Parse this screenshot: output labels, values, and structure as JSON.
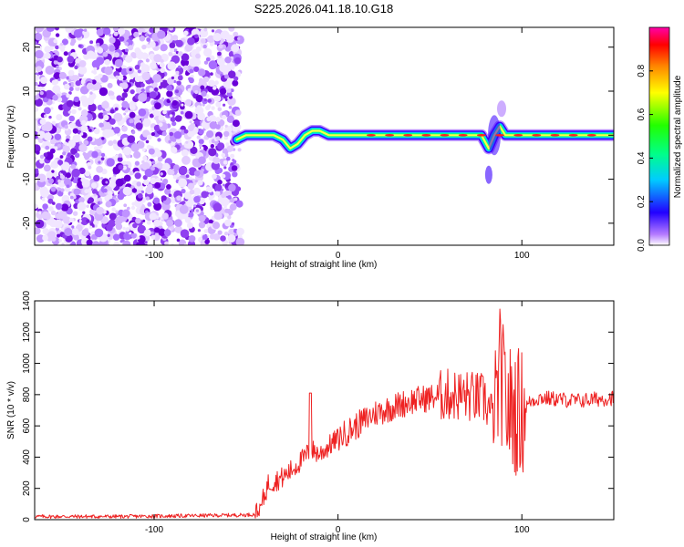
{
  "title": "S225.2026.041.18.10.G18",
  "chart_data": [
    {
      "type": "heatmap",
      "xlabel": "Height of straight line (km)",
      "ylabel": "Frequency (Hz)",
      "xlim": [
        -165,
        150
      ],
      "ylim": [
        -25,
        24.5
      ],
      "xticks": [
        -100,
        0,
        100
      ],
      "xtick_labels": [
        "-100",
        "0",
        "100"
      ],
      "yticks": [
        20,
        10,
        0,
        -10,
        -20
      ],
      "ytick_labels": [
        "20",
        "10",
        "0",
        "-10",
        "-20"
      ],
      "noise_region_x": [
        -165,
        -53
      ],
      "ridge": [
        [
          -55,
          -1
        ],
        [
          -50,
          0
        ],
        [
          -45,
          0
        ],
        [
          -40,
          0
        ],
        [
          -35,
          0
        ],
        [
          -30,
          -1
        ],
        [
          -26,
          -3
        ],
        [
          -22,
          -2
        ],
        [
          -18,
          0
        ],
        [
          -14,
          1
        ],
        [
          -10,
          1
        ],
        [
          -5,
          0
        ],
        [
          0,
          0
        ],
        [
          10,
          0
        ],
        [
          20,
          0
        ],
        [
          30,
          0
        ],
        [
          40,
          0
        ],
        [
          50,
          0
        ],
        [
          60,
          0
        ],
        [
          70,
          0
        ],
        [
          78,
          0
        ],
        [
          82,
          -3
        ],
        [
          85,
          0
        ],
        [
          88,
          2
        ],
        [
          91,
          0
        ],
        [
          95,
          0
        ],
        [
          100,
          0
        ],
        [
          110,
          0
        ],
        [
          120,
          0
        ],
        [
          130,
          0
        ],
        [
          140,
          0
        ],
        [
          150,
          0
        ]
      ],
      "colorbar": {
        "label": "Normalized spectral amplitude",
        "range": [
          0,
          1
        ],
        "ticks": [
          0.0,
          0.2,
          0.4,
          0.6,
          0.8
        ],
        "tick_labels": [
          "0.0",
          "0.2",
          "0.4",
          "0.6",
          "0.8"
        ]
      }
    },
    {
      "type": "line",
      "xlabel": "Height of straight line (km)",
      "ylabel": "SNR (10 * v/v)",
      "xlim": [
        -165,
        150
      ],
      "ylim": [
        0,
        1400
      ],
      "xticks": [
        -100,
        0,
        100
      ],
      "xtick_labels": [
        "-100",
        "0",
        "100"
      ],
      "yticks": [
        0,
        200,
        400,
        600,
        800,
        1000,
        1200,
        1400
      ],
      "ytick_labels": [
        "0",
        "200",
        "400",
        "600",
        "800",
        "1000",
        "1200",
        "1400"
      ],
      "color": "#ee2222",
      "series": [
        {
          "name": "SNR",
          "x": [
            -165,
            -120,
            -80,
            -50,
            -45,
            -42,
            -38,
            -30,
            -25,
            -18,
            -15,
            -10,
            0,
            10,
            20,
            30,
            40,
            50,
            60,
            70,
            80,
            85,
            88,
            92,
            95,
            100,
            105,
            110,
            120,
            130,
            140,
            150
          ],
          "y": [
            20,
            20,
            25,
            30,
            35,
            80,
            230,
            270,
            320,
            400,
            450,
            420,
            520,
            600,
            680,
            720,
            760,
            780,
            800,
            790,
            770,
            620,
            950,
            720,
            700,
            690,
            760,
            780,
            770,
            760,
            770,
            780
          ]
        }
      ]
    }
  ]
}
